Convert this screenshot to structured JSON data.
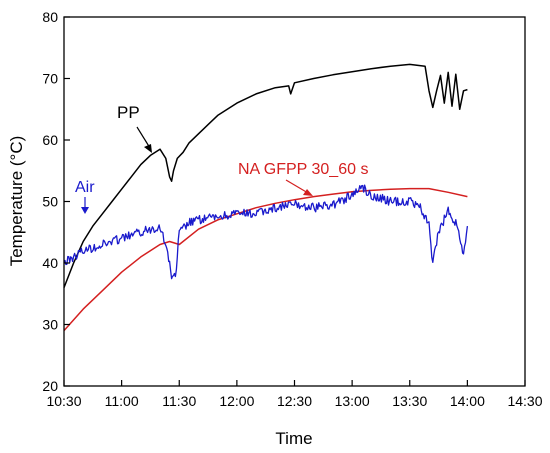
{
  "chart_data": {
    "type": "line",
    "xlabel": "Time",
    "ylabel": "Temperature (°C)",
    "xlim": [
      "10:30",
      "14:30"
    ],
    "ylim": [
      20,
      80
    ],
    "x_ticks": [
      "10:30",
      "11:00",
      "11:30",
      "12:00",
      "12:30",
      "13:00",
      "13:30",
      "14:00",
      "14:30"
    ],
    "y_ticks": [
      20,
      30,
      40,
      50,
      60,
      70,
      80
    ],
    "grid": false,
    "series": [
      {
        "name": "PP",
        "color": "#000000",
        "x": [
          "10:30",
          "10:35",
          "10:40",
          "10:45",
          "10:50",
          "10:55",
          "11:00",
          "11:05",
          "11:10",
          "11:15",
          "11:20",
          "11:23",
          "11:25",
          "11:26",
          "11:27",
          "11:29",
          "11:32",
          "11:35",
          "11:40",
          "11:45",
          "11:50",
          "11:55",
          "12:00",
          "12:10",
          "12:20",
          "12:27",
          "12:28",
          "12:30",
          "12:40",
          "12:50",
          "13:00",
          "13:10",
          "13:20",
          "13:30",
          "13:38",
          "13:40",
          "13:42",
          "13:44",
          "13:46",
          "13:48",
          "13:50",
          "13:52",
          "13:54",
          "13:56",
          "13:58",
          "14:00"
        ],
        "values": [
          36,
          40,
          43.5,
          46,
          48,
          50,
          52,
          54,
          56,
          57.5,
          58.5,
          57,
          54,
          53.3,
          55,
          57,
          58,
          59.5,
          61,
          62.5,
          64,
          65,
          66,
          67.5,
          68.5,
          68.8,
          67.5,
          69.3,
          70,
          70.6,
          71.1,
          71.6,
          72,
          72.3,
          72,
          68,
          65.3,
          68,
          70.5,
          66,
          71,
          65.5,
          70.7,
          65,
          68,
          68.2
        ]
      },
      {
        "name": "NA GFPP 30_60 s",
        "color": "#d42020",
        "x": [
          "10:30",
          "10:40",
          "10:50",
          "11:00",
          "11:10",
          "11:20",
          "11:25",
          "11:30",
          "11:40",
          "11:50",
          "12:00",
          "12:10",
          "12:20",
          "12:30",
          "12:40",
          "12:50",
          "13:00",
          "13:10",
          "13:20",
          "13:30",
          "13:40",
          "13:50",
          "14:00"
        ],
        "values": [
          29,
          32.5,
          35.5,
          38.5,
          41,
          43,
          43.5,
          43,
          45.5,
          47,
          48,
          49,
          49.7,
          50.3,
          50.8,
          51.2,
          51.6,
          51.8,
          52,
          52.1,
          52.1,
          51.5,
          50.8
        ]
      },
      {
        "name": "Air",
        "color": "#1a1acc",
        "x": [
          "10:30",
          "10:35",
          "10:40",
          "10:50",
          "11:00",
          "11:10",
          "11:15",
          "11:20",
          "11:22",
          "11:25",
          "11:26",
          "11:28",
          "11:30",
          "11:35",
          "11:40",
          "11:50",
          "12:00",
          "12:10",
          "12:20",
          "12:30",
          "12:40",
          "12:50",
          "13:00",
          "13:05",
          "13:10",
          "13:20",
          "13:30",
          "13:35",
          "13:40",
          "13:42",
          "13:45",
          "13:50",
          "13:55",
          "13:58",
          "14:00"
        ],
        "values": [
          40,
          41,
          42,
          43,
          44,
          45,
          45.5,
          46,
          44,
          40,
          38,
          37.5,
          45,
          46.5,
          47,
          47.5,
          48,
          48,
          49,
          49.5,
          49,
          49.5,
          51,
          52.5,
          51,
          50,
          50,
          49.5,
          46,
          40,
          45,
          48.5,
          46,
          41,
          46
        ]
      }
    ],
    "annotations": [
      {
        "text": "PP",
        "color": "#000000"
      },
      {
        "text": "Air",
        "color": "#1a1acc"
      },
      {
        "text": "NA GFPP 30_60 s",
        "color": "#d42020"
      }
    ]
  }
}
